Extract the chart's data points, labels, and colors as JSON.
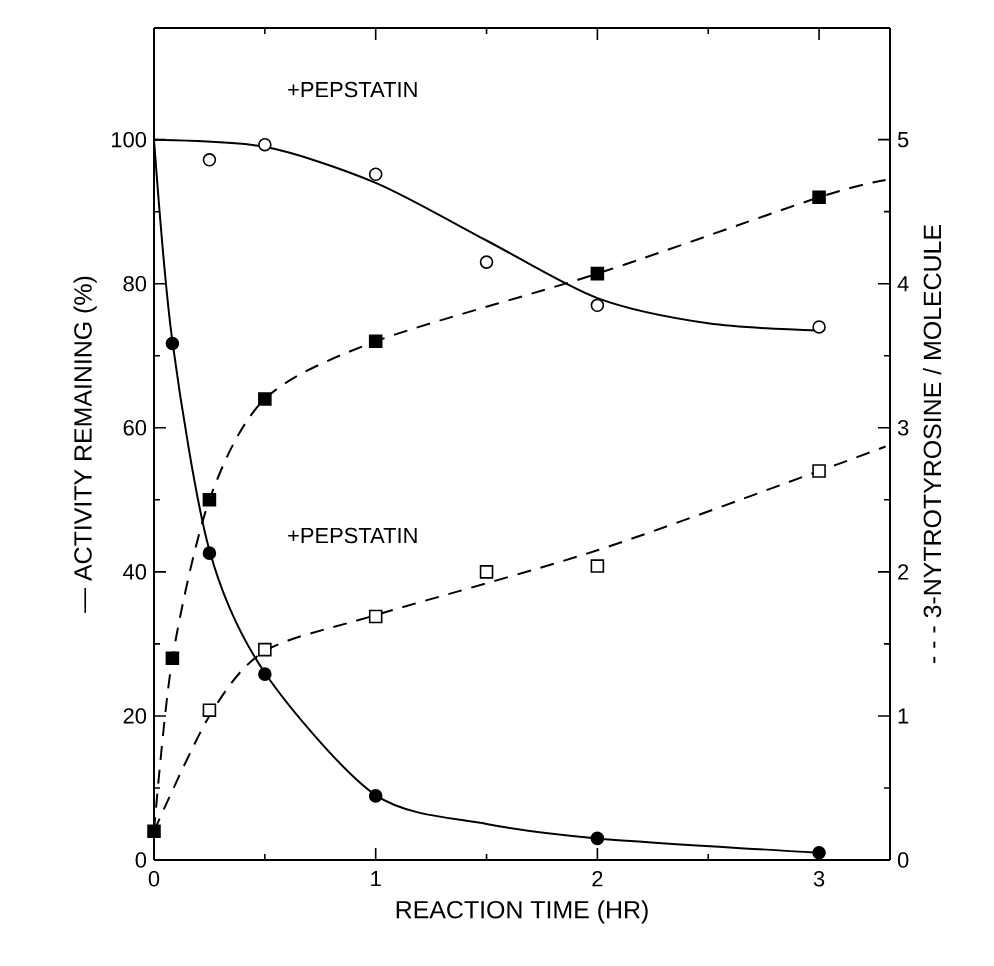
{
  "chart_data": {
    "type": "scatter",
    "xlabel": "REACTION TIME (HR)",
    "ylabel": "— ACTIVITY REMAINING (%)",
    "y2label": "- - - 3-NYTROTYROSINE / MOLECULE",
    "xlim": [
      0,
      3.32
    ],
    "xticks": [
      0,
      1,
      2,
      3
    ],
    "ylim": [
      0,
      115.5
    ],
    "yticks": [
      0,
      20,
      40,
      60,
      80,
      100
    ],
    "y2lim": [
      0,
      5.775
    ],
    "y2ticks": [
      0,
      1,
      2,
      3,
      4,
      5
    ],
    "grid": false,
    "series": [
      {
        "type": "line",
        "color": "#000000",
        "line_style": "solid",
        "marker": "none",
        "x": [
          0,
          0.5,
          1,
          1.5,
          2,
          2.5,
          3
        ],
        "values": [
          100,
          99,
          94,
          86,
          78,
          74.5,
          73.5
        ]
      },
      {
        "type": "line",
        "color": "#000000",
        "line_style": "solid",
        "marker": "none",
        "x": [
          0,
          0.083,
          0.25,
          0.5,
          1,
          1.5,
          2,
          3
        ],
        "values": [
          100,
          72,
          43,
          26,
          9,
          5,
          3,
          1
        ]
      },
      {
        "type": "line",
        "axis": "y2",
        "color": "#000000",
        "line_style": "dashed",
        "marker": "none",
        "x": [
          0,
          0.083,
          0.25,
          0.5,
          1,
          2,
          3,
          3.3
        ],
        "values": [
          0.2,
          1.4,
          2.5,
          3.2,
          3.6,
          4.07,
          4.6,
          4.72
        ]
      },
      {
        "type": "line",
        "axis": "y2",
        "color": "#000000",
        "line_style": "dashed",
        "marker": "none",
        "x": [
          0,
          0.25,
          0.5,
          1,
          2,
          3,
          3.3
        ],
        "values": [
          0.2,
          1.0,
          1.45,
          1.7,
          2.15,
          2.7,
          2.87
        ]
      },
      {
        "color": "#ffffff",
        "marker": "circle",
        "x": [
          0.25,
          0.5,
          1,
          1.5,
          2,
          3
        ],
        "values": [
          97.2,
          99.3,
          95.2,
          83,
          77,
          74
        ]
      },
      {
        "color": "#000000",
        "marker": "circle",
        "x": [
          0.083,
          0.25,
          0.5,
          1,
          2,
          3
        ],
        "values": [
          71.7,
          42.6,
          25.8,
          8.9,
          3,
          1
        ]
      },
      {
        "axis": "y2",
        "color": "#000000",
        "marker": "square",
        "x": [
          0,
          0.083,
          0.25,
          0.5,
          1,
          2,
          3
        ],
        "values": [
          0.2,
          1.4,
          2.5,
          3.2,
          3.6,
          4.07,
          4.6
        ]
      },
      {
        "axis": "y2",
        "color": "#ffffff",
        "marker": "square",
        "x": [
          0.25,
          0.5,
          1,
          1.5,
          2,
          3
        ],
        "values": [
          1.04,
          1.46,
          1.69,
          2.0,
          2.04,
          2.7
        ]
      }
    ],
    "annotations": [
      "+PEPSTATIN",
      "+PEPSTATIN"
    ]
  }
}
